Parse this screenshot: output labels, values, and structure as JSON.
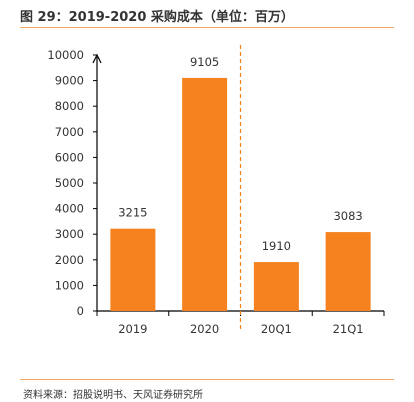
{
  "header": {
    "title": "图 29：2019-2020 采购成本（单位：百万）"
  },
  "footer": {
    "source": "资料来源：招股说明书、天风证券研究所"
  },
  "colors": {
    "bar": "#f5821f",
    "rule": "#f4a560",
    "axis": "#000000",
    "divider": "#f5821f",
    "text": "#333333"
  },
  "chart_data": {
    "type": "bar",
    "categories": [
      "2019",
      "2020",
      "20Q1",
      "21Q1"
    ],
    "values": [
      3215,
      9105,
      1910,
      3083
    ],
    "ylim": [
      0,
      10000
    ],
    "yticks": [
      "0",
      "1000",
      "2000",
      "3000",
      "4000",
      "5000",
      "6000",
      "7000",
      "8000",
      "9000",
      "10000"
    ],
    "grid": false,
    "legend": "none",
    "divider_between": [
      "2020",
      "20Q1"
    ]
  }
}
